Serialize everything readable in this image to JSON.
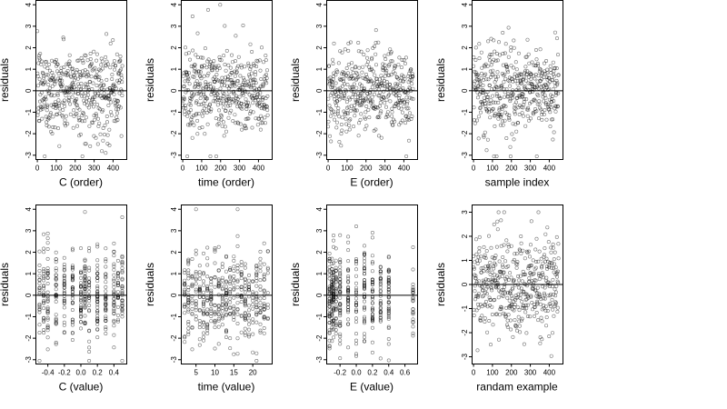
{
  "chart_data": [
    {
      "type": "scatter",
      "xlabel": "C (order)",
      "ylabel": "residuals",
      "xlim": [
        -10,
        470
      ],
      "ylim": [
        -3.2,
        4.2
      ],
      "xticks": [
        "0",
        "100",
        "200",
        "300",
        "400"
      ],
      "xtick_values": [
        0,
        100,
        200,
        300,
        400
      ],
      "yticks": [
        "-3",
        "-2",
        "-1",
        "0",
        "1",
        "2",
        "3",
        "4"
      ],
      "ytick_values": [
        -3,
        -2,
        -1,
        0,
        1,
        2,
        3,
        4
      ],
      "hline": 0,
      "n_points": 450,
      "x_kind": "index",
      "y_spread": 1.0,
      "y_max": 4.0
    },
    {
      "type": "scatter",
      "xlabel": "time (order)",
      "ylabel": "residuals",
      "xlim": [
        -10,
        470
      ],
      "ylim": [
        -3.2,
        4.2
      ],
      "xticks": [
        "0",
        "100",
        "200",
        "300",
        "400"
      ],
      "xtick_values": [
        0,
        100,
        200,
        300,
        400
      ],
      "yticks": [
        "-3",
        "-2",
        "-1",
        "0",
        "1",
        "2",
        "3",
        "4"
      ],
      "ytick_values": [
        -3,
        -2,
        -1,
        0,
        1,
        2,
        3,
        4
      ],
      "hline": 0,
      "n_points": 450,
      "x_kind": "index",
      "y_spread": 1.0,
      "y_max": 4.0
    },
    {
      "type": "scatter",
      "xlabel": "E (order)",
      "ylabel": "residuals",
      "xlim": [
        -10,
        470
      ],
      "ylim": [
        -3.2,
        4.2
      ],
      "xticks": [
        "0",
        "100",
        "200",
        "300",
        "400"
      ],
      "xtick_values": [
        0,
        100,
        200,
        300,
        400
      ],
      "yticks": [
        "-3",
        "-2",
        "-1",
        "0",
        "1",
        "2",
        "3",
        "4"
      ],
      "ytick_values": [
        -3,
        -2,
        -1,
        0,
        1,
        2,
        3,
        4
      ],
      "hline": 0,
      "n_points": 450,
      "x_kind": "index",
      "y_spread": 1.0,
      "y_max": 4.0
    },
    {
      "type": "scatter",
      "xlabel": "sample index",
      "ylabel": "residuals",
      "xlim": [
        -10,
        470
      ],
      "ylim": [
        -3.2,
        4.2
      ],
      "xticks": [
        "0",
        "100",
        "200",
        "300",
        "400"
      ],
      "xtick_values": [
        0,
        100,
        200,
        300,
        400
      ],
      "yticks": [
        "-3",
        "-2",
        "-1",
        "0",
        "1",
        "2",
        "3",
        "4"
      ],
      "ytick_values": [
        -3,
        -2,
        -1,
        0,
        1,
        2,
        3,
        4
      ],
      "hline": 0,
      "n_points": 450,
      "x_kind": "index",
      "y_spread": 1.0,
      "y_max": 4.0
    },
    {
      "type": "scatter",
      "xlabel": "C (value)",
      "ylabel": "residuals",
      "xlim": [
        -0.55,
        0.55
      ],
      "ylim": [
        -3.2,
        4.2
      ],
      "xticks": [
        "-0.4",
        "-0.2",
        "0.0",
        "0.2",
        "0.4"
      ],
      "xtick_values": [
        -0.4,
        -0.2,
        0,
        0.2,
        0.4
      ],
      "yticks": [
        "-3",
        "-2",
        "-1",
        "0",
        "1",
        "2",
        "3",
        "4"
      ],
      "ytick_values": [
        -3,
        -2,
        -1,
        0,
        1,
        2,
        3,
        4
      ],
      "hline": 0,
      "n_points": 450,
      "x_kind": "discrete",
      "x_levels": [
        -0.5,
        -0.45,
        -0.4,
        -0.3,
        -0.2,
        -0.1,
        0.0,
        0.05,
        0.1,
        0.2,
        0.3,
        0.4,
        0.45,
        0.5
      ],
      "y_spread": 1.0,
      "y_max": 4.0
    },
    {
      "type": "scatter",
      "xlabel": "time (value)",
      "ylabel": "residuals",
      "xlim": [
        1,
        25
      ],
      "ylim": [
        -3.2,
        4.2
      ],
      "xticks": [
        "5",
        "10",
        "15",
        "20"
      ],
      "xtick_values": [
        5,
        10,
        15,
        20
      ],
      "yticks": [
        "-3",
        "-2",
        "-1",
        "0",
        "1",
        "2",
        "3",
        "4"
      ],
      "ytick_values": [
        -3,
        -2,
        -1,
        0,
        1,
        2,
        3,
        4
      ],
      "hline": 0,
      "n_points": 450,
      "x_kind": "discrete",
      "x_levels": [
        2,
        3,
        4,
        5,
        6,
        7,
        8,
        9,
        10,
        11,
        12,
        13,
        14,
        15,
        16,
        17,
        18,
        19,
        20,
        21,
        22,
        23,
        24
      ],
      "y_spread": 1.0,
      "y_max": 4.0
    },
    {
      "type": "scatter",
      "xlabel": "E (value)",
      "ylabel": "residuals",
      "xlim": [
        -0.37,
        0.75
      ],
      "ylim": [
        -3.2,
        4.2
      ],
      "xticks": [
        "-0.2",
        "0.0",
        "0.2",
        "0.4",
        "0.6"
      ],
      "xtick_values": [
        -0.2,
        0,
        0.2,
        0.4,
        0.6
      ],
      "yticks": [
        "-3",
        "-2",
        "-1",
        "0",
        "1",
        "2",
        "3",
        "4"
      ],
      "ytick_values": [
        -3,
        -2,
        -1,
        0,
        1,
        2,
        3,
        4
      ],
      "hline": 0,
      "n_points": 450,
      "x_kind": "discrete",
      "x_levels": [
        -0.33,
        -0.3,
        -0.28,
        -0.25,
        -0.2,
        -0.1,
        0.0,
        0.1,
        0.2,
        0.3,
        0.4,
        0.7
      ],
      "y_spread": 1.0,
      "y_max": 4.0
    },
    {
      "type": "scatter",
      "xlabel": "randam example",
      "ylabel": "residuals",
      "xlim": [
        -10,
        470
      ],
      "ylim": [
        -3.3,
        3.3
      ],
      "xticks": [
        "0",
        "100",
        "200",
        "300",
        "400"
      ],
      "xtick_values": [
        0,
        100,
        200,
        300,
        400
      ],
      "yticks": [
        "-3",
        "-2",
        "-1",
        "0",
        "1",
        "2",
        "3"
      ],
      "ytick_values": [
        -3,
        -2,
        -1,
        0,
        1,
        2,
        3
      ],
      "hline": 0,
      "n_points": 450,
      "x_kind": "index",
      "y_spread": 1.0,
      "y_max": 3.0
    }
  ]
}
